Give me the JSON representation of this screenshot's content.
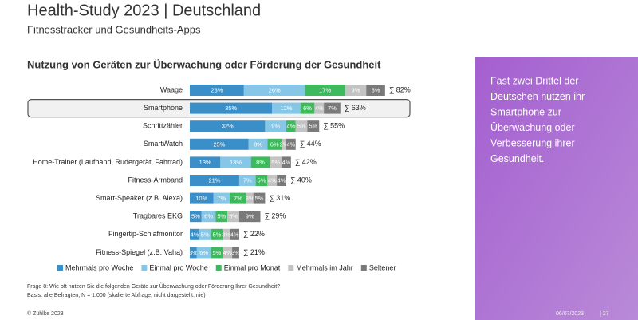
{
  "header": {
    "title": "Health-Study 2023 | Deutschland",
    "subtitle": "Fitnesstracker und Gesundheits-Apps"
  },
  "chart_data": {
    "type": "stacked-bar-horizontal",
    "title": "Nutzung von Geräten zur Überwachung oder Förderung der Gesundheit",
    "categories": [
      "Waage",
      "Smartphone",
      "Schrittzähler",
      "SmartWatch",
      "Home-Trainer (Laufband, Rudergerät, Fahrrad)",
      "Fitness-Armband",
      "Smart-Speaker (z.B. Alexa)",
      "Tragbares EKG",
      "Fingertip-Schlafmonitor",
      "Fitness-Spiegel (z.B. Vaha)"
    ],
    "series": [
      {
        "name": "Mehrmals pro Woche",
        "color": "#3a8fc8",
        "values": [
          23,
          35,
          32,
          25,
          13,
          21,
          10,
          5,
          4,
          3
        ],
        "value_labels": [
          "23%",
          "35%",
          "32%",
          "25%",
          "13%",
          "21%",
          "10%",
          "5%",
          "4%",
          "3%"
        ]
      },
      {
        "name": "Einmal pro Woche",
        "color": "#86c6e6",
        "values": [
          26,
          12,
          9,
          8,
          13,
          7,
          7,
          6,
          5,
          6
        ],
        "value_labels": [
          "26%",
          "12%",
          "9%",
          "8%",
          "13%",
          "7%",
          "7%",
          "6%",
          "5%",
          "6%"
        ]
      },
      {
        "name": "Einmal pro Monat",
        "color": "#3cba5c",
        "values": [
          17,
          6,
          4,
          6,
          8,
          5,
          7,
          5,
          5,
          5
        ],
        "value_labels": [
          "17%",
          "6%",
          "4%",
          "6%",
          "8%",
          "5%",
          "7%",
          "5%",
          "5%",
          "5%"
        ]
      },
      {
        "name": "Mehrmals im Jahr",
        "color": "#c3c3c3",
        "values": [
          9,
          4,
          5,
          2,
          5,
          4,
          3,
          5,
          3,
          4
        ],
        "value_labels": [
          "9%",
          "4%",
          "5%",
          "2%",
          "5%",
          "4%",
          "3%",
          "5%",
          "3%",
          "4%"
        ]
      },
      {
        "name": "Seltener",
        "color": "#7a7a7a",
        "values": [
          8,
          7,
          5,
          4,
          4,
          4,
          5,
          9,
          4,
          3
        ],
        "value_labels": [
          "8%",
          "7%",
          "5%",
          "4%",
          "4%",
          "4%",
          "5%",
          "9%",
          "4%",
          "3%"
        ]
      }
    ],
    "totals": {
      "values": [
        82,
        63,
        55,
        44,
        42,
        40,
        31,
        29,
        22,
        21
      ],
      "value_labels": [
        "∑ 82%",
        "∑ 63%",
        "∑ 55%",
        "∑ 44%",
        "∑ 42%",
        "∑ 40%",
        "∑ 31%",
        "∑ 29%",
        "∑ 22%",
        "∑ 21%"
      ]
    },
    "highlight_index": 1,
    "notes": [
      "Frage 8: Wie oft nutzen Sie die folgenden Geräte zur Überwachung oder Förderung Ihrer Gesundheit?",
      "Basis: alle Befragten, N = 1.000 (skalierte Abfrage; nicht dargestellt: nie)"
    ]
  },
  "callout": {
    "lines": [
      "Fast zwei Drittel der",
      "Deutschen nutzen ihr",
      "Smartphone zur",
      "Überwachung oder",
      "Verbesserung ihrer",
      "Gesundheit."
    ]
  },
  "footer": {
    "copyright": "© Zühlke  2023",
    "date": "06/07/2023",
    "page": "|  27"
  }
}
